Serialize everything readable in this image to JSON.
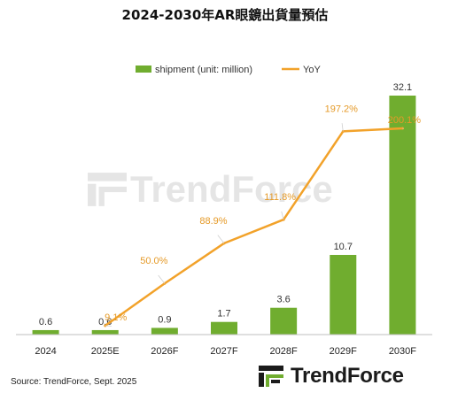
{
  "title": "2024-2030年AR眼鏡出貨量預估",
  "source": "Source: TrendForce, Sept. 2025",
  "brand": {
    "logo_text": "TrendForce",
    "watermark_text": "TrendForce"
  },
  "colors": {
    "bar": "#70AD2F",
    "line": "#F2A22A",
    "label_orange": "#E59A28",
    "label_dark": "#333333",
    "axis": "#BFBFBF"
  },
  "chart_data": {
    "type": "bar",
    "categories": [
      "2024",
      "2025E",
      "2026F",
      "2027F",
      "2028F",
      "2029F",
      "2030F"
    ],
    "series": [
      {
        "name": "shipment (unit: million)",
        "type": "bar",
        "values": [
          0.6,
          0.6,
          0.9,
          1.7,
          3.6,
          10.7,
          32.1
        ],
        "labels": [
          "0.6",
          "0.6",
          "0.9",
          "1.7",
          "3.6",
          "10.7",
          "32.1"
        ]
      },
      {
        "name": "YoY",
        "type": "line",
        "values": [
          null,
          9.1,
          50.0,
          88.9,
          111.8,
          197.2,
          200.1
        ],
        "labels": [
          "",
          "9.1%",
          "50.0%",
          "88.9%",
          "111.8%",
          "197.2%",
          "200.1%"
        ]
      }
    ],
    "legend": "top-center",
    "grid": false
  }
}
